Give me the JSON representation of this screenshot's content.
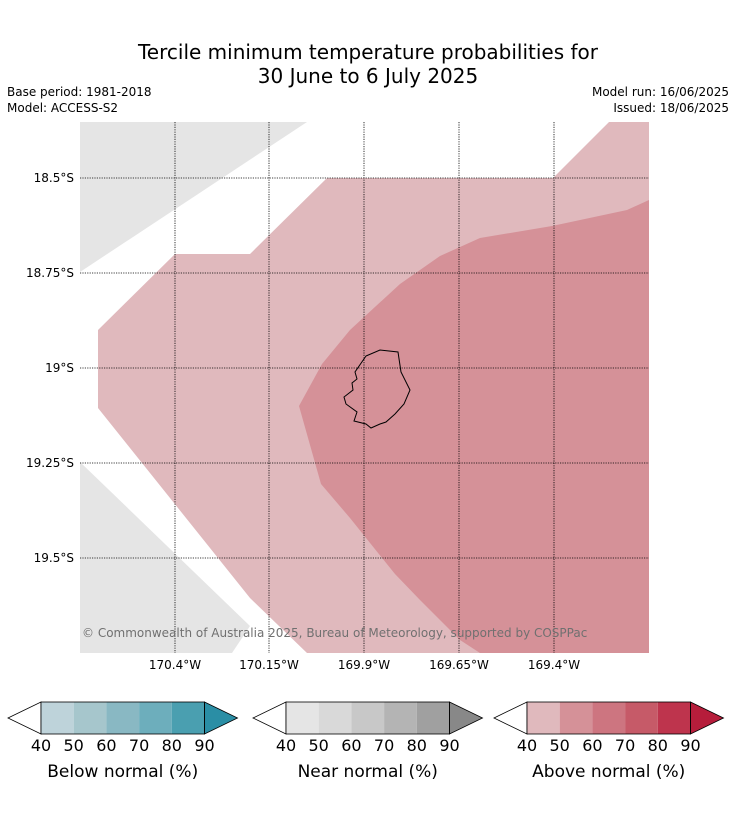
{
  "title_line1": "Tercile minimum temperature probabilities for",
  "title_line2": "30 June to 6 July 2025",
  "base_period": "Base period: 1981-2018",
  "model": "Model: ACCESS-S2",
  "model_run": "Model run: 16/06/2025",
  "issued": "Issued: 18/06/2025",
  "copyright": "© Commonwealth of Australia 2025, Bureau of Meteorology, supported by COSPPac",
  "lat_labels": [
    "18.5°S",
    "18.75°S",
    "19°S",
    "19.25°S",
    "19.5°S"
  ],
  "lon_labels": [
    "170.4°W",
    "170.15°W",
    "169.9°W",
    "169.65°W",
    "169.4°W"
  ],
  "colors": {
    "near_normal_fill": "#e5e5e5",
    "above_50": "#e0b9bd",
    "above_60": "#d59198",
    "coast": "#000000"
  },
  "colorbars": [
    {
      "label": "Below normal (%)",
      "ticks": [
        "40",
        "50",
        "60",
        "70",
        "80",
        "90"
      ],
      "colors": [
        "#bed3da",
        "#a6c6cc",
        "#89b8c3",
        "#6daebc",
        "#4a9fb0",
        "#2a8ea5"
      ]
    },
    {
      "label": "Near normal (%)",
      "ticks": [
        "40",
        "50",
        "60",
        "70",
        "80",
        "90"
      ],
      "colors": [
        "#e5e5e5",
        "#d9d9d9",
        "#c8c8c8",
        "#b4b4b4",
        "#a0a0a0",
        "#888888"
      ]
    },
    {
      "label": "Above normal (%)",
      "ticks": [
        "40",
        "50",
        "60",
        "70",
        "80",
        "90"
      ],
      "colors": [
        "#e0b9bd",
        "#d59198",
        "#cd7580",
        "#c65a68",
        "#be344d",
        "#b61d3b"
      ]
    }
  ]
}
